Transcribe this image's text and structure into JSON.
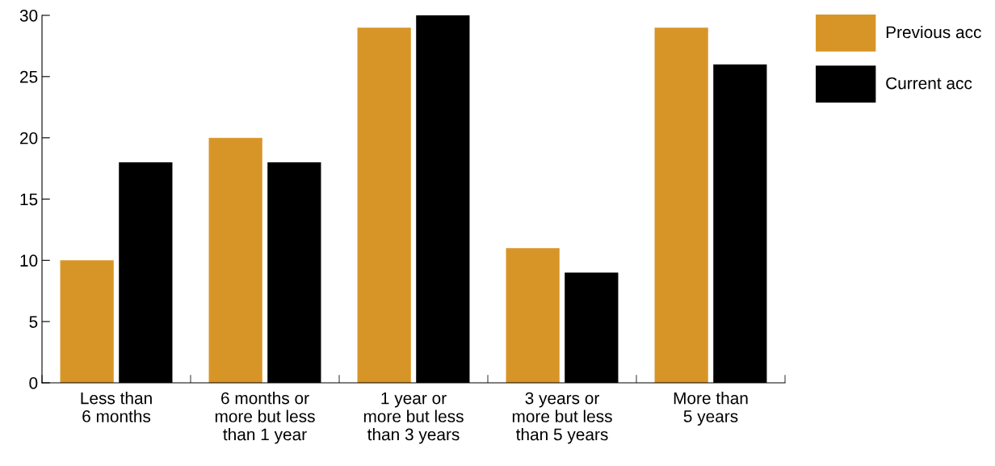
{
  "chart_data": {
    "type": "bar",
    "categories": [
      "Less than\n6 months",
      "6 months or\nmore but less\nthan 1 year",
      "1 year or\nmore but less\nthan 3 years",
      "3 years or\nmore but less\nthan 5 years",
      "More than\n5 years"
    ],
    "series": [
      {
        "name": "Previous acc",
        "color": "#d89527",
        "values": [
          10,
          20,
          29,
          11,
          29
        ]
      },
      {
        "name": "Current acc",
        "color": "#000000",
        "values": [
          18,
          18,
          30,
          9,
          26
        ]
      }
    ],
    "ylim": [
      0,
      30
    ],
    "yticks": [
      0,
      5,
      10,
      15,
      20,
      25,
      30
    ],
    "grid": false,
    "legend": "right"
  }
}
